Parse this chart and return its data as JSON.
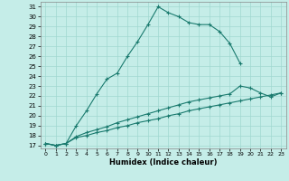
{
  "xlabel": "Humidex (Indice chaleur)",
  "bg_color": "#c5ede8",
  "grid_color": "#a0d8d0",
  "line_color": "#1a7a6e",
  "xlim": [
    -0.5,
    23.5
  ],
  "ylim": [
    16.7,
    31.5
  ],
  "xticks": [
    0,
    1,
    2,
    3,
    4,
    5,
    6,
    7,
    8,
    9,
    10,
    11,
    12,
    13,
    14,
    15,
    16,
    17,
    18,
    19,
    20,
    21,
    22,
    23
  ],
  "yticks": [
    17,
    18,
    19,
    20,
    21,
    22,
    23,
    24,
    25,
    26,
    27,
    28,
    29,
    30,
    31
  ],
  "line1_x": [
    0,
    1,
    2,
    3,
    4,
    5,
    6,
    7,
    8,
    9,
    10,
    11,
    12,
    13,
    14,
    15,
    16,
    17,
    18,
    19
  ],
  "line1_y": [
    17.2,
    17.0,
    17.2,
    19.0,
    20.5,
    22.2,
    23.7,
    24.3,
    26.0,
    27.5,
    29.2,
    31.0,
    30.4,
    30.0,
    29.4,
    29.2,
    29.2,
    28.5,
    27.3,
    25.3
  ],
  "line2_x": [
    0,
    1,
    2,
    3,
    4,
    5,
    6,
    7,
    8,
    9,
    10,
    11,
    12,
    13,
    14,
    15,
    16,
    17,
    18,
    19,
    20,
    21,
    22,
    23
  ],
  "line2_y": [
    17.2,
    17.0,
    17.2,
    17.9,
    18.3,
    18.6,
    18.9,
    19.3,
    19.6,
    19.9,
    20.2,
    20.5,
    20.8,
    21.1,
    21.4,
    21.6,
    21.8,
    22.0,
    22.2,
    23.0,
    22.8,
    22.3,
    21.9,
    22.3
  ],
  "line3_x": [
    0,
    1,
    2,
    3,
    4,
    5,
    6,
    7,
    8,
    9,
    10,
    11,
    12,
    13,
    14,
    15,
    16,
    17,
    18,
    19,
    20,
    21,
    22,
    23
  ],
  "line3_y": [
    17.2,
    17.0,
    17.2,
    17.8,
    18.0,
    18.3,
    18.5,
    18.8,
    19.0,
    19.3,
    19.5,
    19.7,
    20.0,
    20.2,
    20.5,
    20.7,
    20.9,
    21.1,
    21.3,
    21.5,
    21.7,
    21.9,
    22.1,
    22.3
  ]
}
